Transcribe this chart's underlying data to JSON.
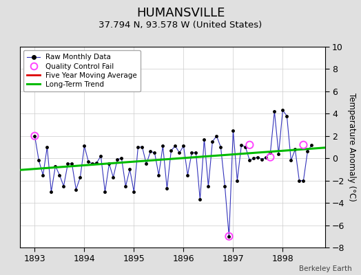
{
  "title": "HUMANSVILLE",
  "subtitle": "37.794 N, 93.578 W (United States)",
  "credit": "Berkeley Earth",
  "ylabel": "Temperature Anomaly (°C)",
  "xlim": [
    1892.7,
    1898.85
  ],
  "ylim": [
    -8,
    10
  ],
  "yticks": [
    -8,
    -6,
    -4,
    -2,
    0,
    2,
    4,
    6,
    8,
    10
  ],
  "xticks": [
    1893,
    1894,
    1895,
    1896,
    1897,
    1898
  ],
  "raw_x": [
    1893.0,
    1893.083,
    1893.167,
    1893.25,
    1893.333,
    1893.417,
    1893.5,
    1893.583,
    1893.667,
    1893.75,
    1893.833,
    1893.917,
    1894.0,
    1894.083,
    1894.167,
    1894.25,
    1894.333,
    1894.417,
    1894.5,
    1894.583,
    1894.667,
    1894.75,
    1894.833,
    1894.917,
    1895.0,
    1895.083,
    1895.167,
    1895.25,
    1895.333,
    1895.417,
    1895.5,
    1895.583,
    1895.667,
    1895.75,
    1895.833,
    1895.917,
    1896.0,
    1896.083,
    1896.167,
    1896.25,
    1896.333,
    1896.417,
    1896.5,
    1896.583,
    1896.667,
    1896.75,
    1896.833,
    1896.917,
    1897.0,
    1897.083,
    1897.167,
    1897.25,
    1897.333,
    1897.417,
    1897.5,
    1897.583,
    1897.667,
    1897.75,
    1897.833,
    1897.917,
    1898.0,
    1898.083,
    1898.167,
    1898.25,
    1898.333,
    1898.417,
    1898.5,
    1898.583
  ],
  "raw_y": [
    2.0,
    -0.2,
    -1.5,
    1.0,
    -3.0,
    -0.7,
    -1.5,
    -2.5,
    -0.5,
    -0.5,
    -2.8,
    -1.7,
    1.1,
    -0.3,
    -0.5,
    -0.4,
    0.2,
    -3.0,
    -0.5,
    -1.7,
    -0.1,
    0.0,
    -2.5,
    -1.0,
    -3.0,
    1.0,
    1.0,
    -0.5,
    0.6,
    0.5,
    -1.5,
    1.1,
    -2.7,
    0.7,
    1.1,
    0.5,
    1.1,
    -1.5,
    0.5,
    0.5,
    -3.7,
    1.7,
    -2.5,
    1.5,
    2.0,
    1.0,
    -2.5,
    -7.0,
    2.5,
    -2.0,
    1.2,
    1.0,
    -0.2,
    0.0,
    0.1,
    -0.1,
    0.1,
    0.5,
    4.2,
    0.4,
    4.3,
    3.8,
    -0.2,
    0.8,
    -2.0,
    -2.0,
    0.6,
    1.2
  ],
  "qc_fail_x": [
    1893.0,
    1896.917,
    1897.333,
    1897.75,
    1898.417
  ],
  "qc_fail_y": [
    2.0,
    -7.0,
    1.2,
    0.1,
    1.2
  ],
  "trend_x": [
    1892.7,
    1898.85
  ],
  "trend_y": [
    -1.05,
    0.95
  ],
  "bg_color": "#e0e0e0",
  "plot_bg_color": "#ffffff",
  "line_color": "#3333bb",
  "dot_color": "#000000",
  "qc_color": "#ff44ff",
  "trend_color": "#00bb00",
  "moving_avg_color": "#dd0000",
  "title_fontsize": 13,
  "subtitle_fontsize": 9.5,
  "tick_fontsize": 9,
  "ylabel_fontsize": 8.5,
  "legend_fontsize": 7.5,
  "credit_fontsize": 7.5
}
